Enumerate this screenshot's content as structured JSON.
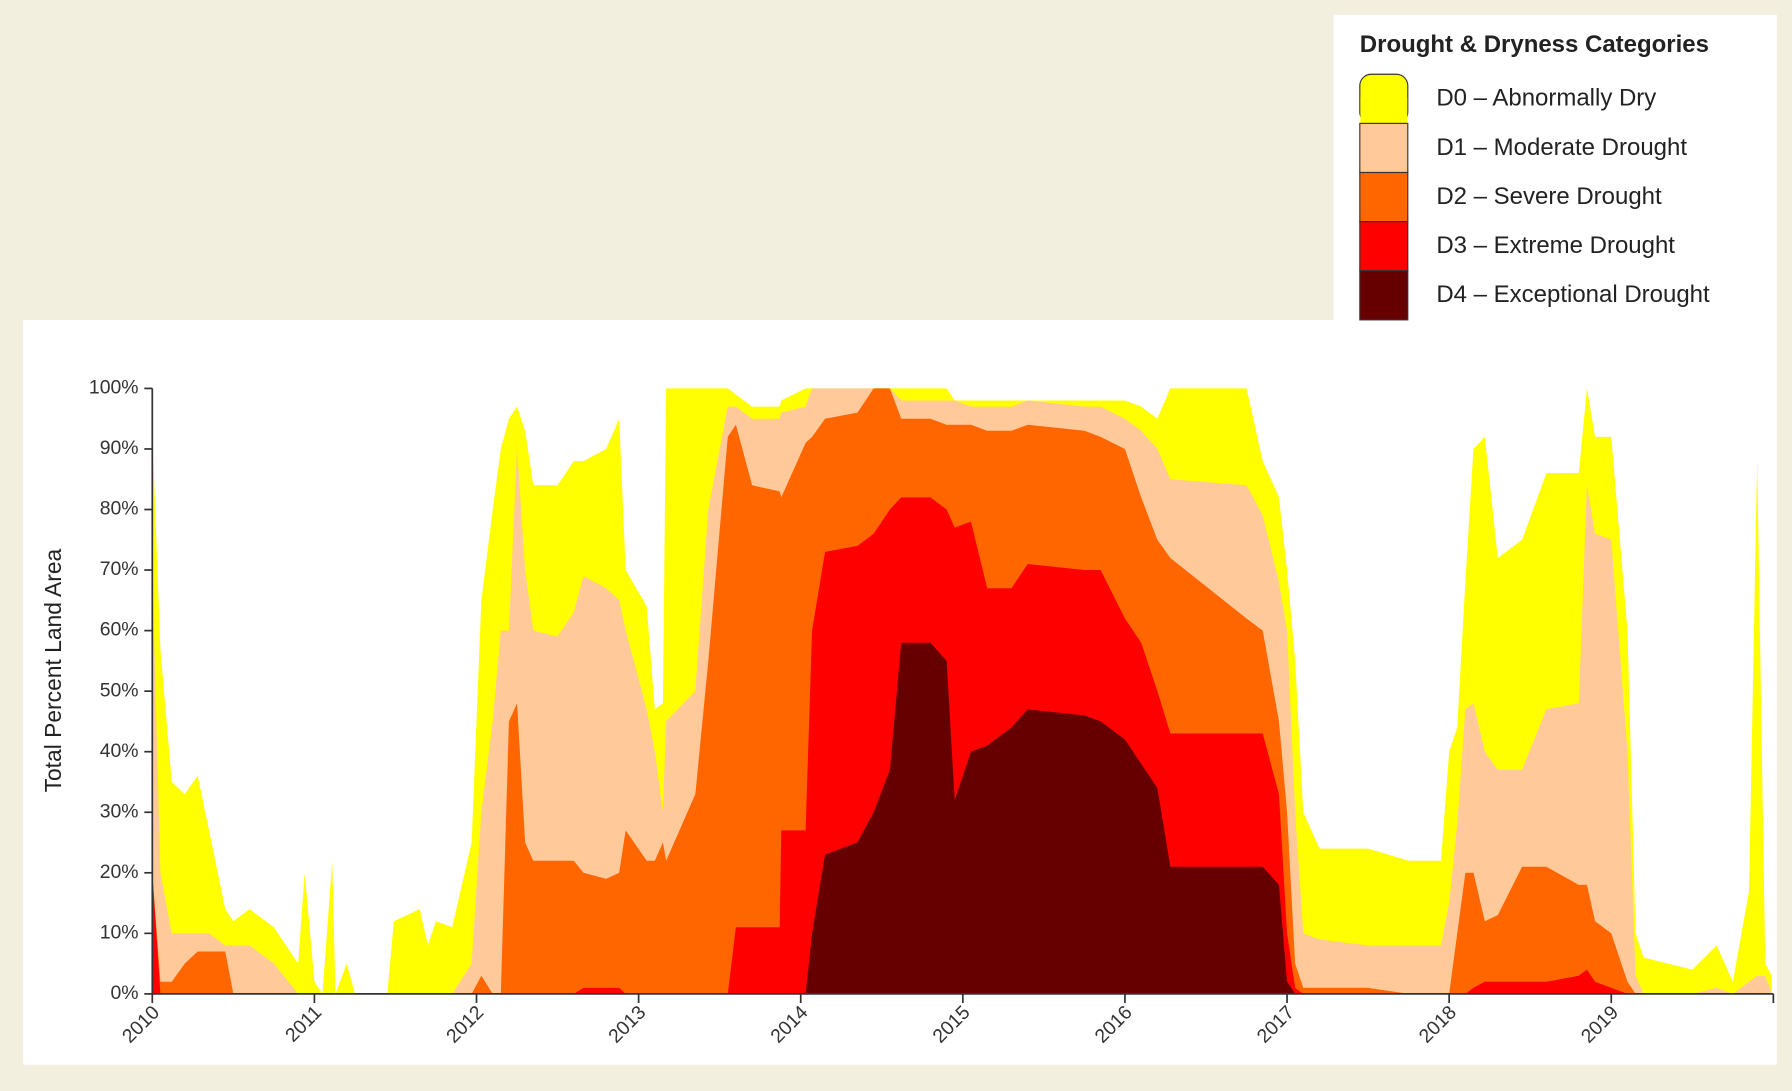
{
  "chart_data": {
    "type": "area",
    "legend_title": "Drought & Dryness Categories",
    "y_label": "Total Percent Land Area",
    "x": [
      2010.0,
      2010.05,
      2010.12,
      2010.2,
      2010.28,
      2010.35,
      2010.45,
      2010.5,
      2010.6,
      2010.75,
      2010.9,
      2010.94,
      2011.0,
      2011.05,
      2011.11,
      2011.13,
      2011.2,
      2011.25,
      2011.45,
      2011.49,
      2011.65,
      2011.7,
      2011.75,
      2011.85,
      2011.97,
      2012.03,
      2012.1,
      2012.15,
      2012.2,
      2012.25,
      2012.3,
      2012.35,
      2012.5,
      2012.6,
      2012.66,
      2012.8,
      2012.88,
      2012.92,
      2013.05,
      2013.1,
      2013.15,
      2013.17,
      2013.35,
      2013.43,
      2013.55,
      2013.6,
      2013.7,
      2013.87,
      2013.88,
      2014.03,
      2014.07,
      2014.15,
      2014.35,
      2014.45,
      2014.55,
      2014.62,
      2014.8,
      2014.9,
      2014.95,
      2015.05,
      2015.15,
      2015.3,
      2015.4,
      2015.75,
      2015.85,
      2016.0,
      2016.1,
      2016.2,
      2016.28,
      2016.75,
      2016.85,
      2016.95,
      2017.0,
      2017.05,
      2017.1,
      2017.2,
      2017.5,
      2017.75,
      2017.95,
      2018.0,
      2018.05,
      2018.1,
      2018.15,
      2018.22,
      2018.3,
      2018.45,
      2018.6,
      2018.8,
      2018.85,
      2018.9,
      2019.0,
      2019.1,
      2019.15,
      2019.2,
      2019.5,
      2019.65,
      2019.75,
      2019.85,
      2019.9,
      2019.95,
      2019.99
    ],
    "series": [
      {
        "name": "D0 – Abnormally Dry",
        "color": "#ffff00",
        "values": [
          93,
          57,
          35,
          33,
          36,
          27,
          14,
          12,
          14,
          11,
          5,
          20,
          2,
          0,
          22,
          0,
          5,
          0,
          0,
          12,
          14,
          8,
          12,
          11,
          25,
          65,
          80,
          90,
          95,
          97,
          93,
          84,
          84,
          88,
          88,
          90,
          95,
          70,
          64,
          47,
          48,
          100,
          100,
          100,
          100,
          99,
          97,
          97,
          98,
          100,
          100,
          100,
          100,
          100,
          100,
          100,
          100,
          100,
          98,
          98,
          98,
          98,
          98,
          98,
          98,
          98,
          97,
          95,
          100,
          100,
          88,
          82,
          70,
          55,
          30,
          24,
          24,
          22,
          22,
          40,
          44,
          68,
          90,
          92,
          72,
          75,
          86,
          86,
          100,
          92,
          92,
          60,
          10,
          6,
          4,
          8,
          2,
          17,
          88,
          5,
          3
        ]
      },
      {
        "name": "D1 – Moderate Drought",
        "color": "#ffc999",
        "values": [
          70,
          20,
          10,
          10,
          10,
          10,
          8,
          8,
          8,
          5,
          0,
          0,
          0,
          0,
          0,
          0,
          0,
          0,
          0,
          0,
          0,
          0,
          0,
          0,
          5,
          30,
          45,
          60,
          60,
          90,
          70,
          60,
          59,
          63,
          69,
          67,
          65,
          60,
          47,
          40,
          30,
          45,
          50,
          80,
          97,
          97,
          95,
          95,
          96,
          97,
          100,
          100,
          100,
          100,
          100,
          98,
          98,
          98,
          98,
          97,
          97,
          97,
          98,
          97,
          97,
          95,
          93,
          90,
          85,
          84,
          79,
          68,
          60,
          30,
          10,
          9,
          8,
          8,
          8,
          15,
          28,
          47,
          48,
          40,
          37,
          37,
          47,
          48,
          84,
          76,
          75,
          40,
          3,
          0,
          0,
          1,
          0,
          2,
          3,
          3,
          0
        ]
      },
      {
        "name": "D2 – Severe Drought",
        "color": "#ff6600",
        "values": [
          20,
          2,
          2,
          5,
          7,
          7,
          7,
          0,
          0,
          0,
          0,
          0,
          0,
          0,
          0,
          0,
          0,
          0,
          0,
          0,
          0,
          0,
          0,
          0,
          0,
          3,
          0,
          0,
          45,
          48,
          25,
          22,
          22,
          22,
          20,
          19,
          20,
          27,
          22,
          22,
          25,
          22,
          33,
          55,
          92,
          94,
          84,
          83,
          82,
          91,
          92,
          95,
          96,
          100,
          100,
          95,
          95,
          94,
          94,
          94,
          93,
          93,
          94,
          93,
          92,
          90,
          82,
          75,
          72,
          62,
          60,
          45,
          30,
          5,
          1,
          1,
          1,
          0,
          0,
          0,
          10,
          20,
          20,
          12,
          13,
          21,
          21,
          18,
          18,
          12,
          10,
          2,
          0,
          0,
          0,
          0,
          0,
          0,
          0,
          0,
          0
        ]
      },
      {
        "name": "D3 – Extreme Drought",
        "color": "#ff0000",
        "values": [
          20,
          0,
          0,
          0,
          0,
          0,
          0,
          0,
          0,
          0,
          0,
          0,
          0,
          0,
          0,
          0,
          0,
          0,
          0,
          0,
          0,
          0,
          0,
          0,
          0,
          0,
          0,
          0,
          0,
          0,
          0,
          0,
          0,
          0,
          1,
          1,
          1,
          0,
          0,
          0,
          0,
          0,
          0,
          0,
          0,
          11,
          11,
          11,
          27,
          27,
          60,
          73,
          74,
          76,
          80,
          82,
          82,
          80,
          77,
          78,
          67,
          67,
          71,
          70,
          70,
          62,
          58,
          50,
          43,
          43,
          43,
          33,
          10,
          1,
          0,
          0,
          0,
          0,
          0,
          0,
          0,
          0,
          1,
          2,
          2,
          2,
          2,
          3,
          4,
          2,
          1,
          0,
          0,
          0,
          0,
          0,
          0,
          0,
          0,
          0,
          0
        ]
      },
      {
        "name": "D4 – Exceptional Drought",
        "color": "#660000",
        "values": [
          0,
          0,
          0,
          0,
          0,
          0,
          0,
          0,
          0,
          0,
          0,
          0,
          0,
          0,
          0,
          0,
          0,
          0,
          0,
          0,
          0,
          0,
          0,
          0,
          0,
          0,
          0,
          0,
          0,
          0,
          0,
          0,
          0,
          0,
          0,
          0,
          0,
          0,
          0,
          0,
          0,
          0,
          0,
          0,
          0,
          0,
          0,
          0,
          0,
          0,
          10,
          23,
          25,
          30,
          37,
          58,
          58,
          55,
          32,
          40,
          41,
          44,
          47,
          46,
          45,
          42,
          38,
          34,
          21,
          21,
          21,
          18,
          2,
          0,
          0,
          0,
          0,
          0,
          0,
          0,
          0,
          0,
          0,
          0,
          0,
          0,
          0,
          0,
          0,
          0,
          0,
          0,
          0,
          0,
          0,
          0,
          0,
          0,
          0,
          0,
          0
        ]
      }
    ],
    "xlim": [
      2010,
      2020
    ],
    "xticks": [
      2010,
      2011,
      2012,
      2013,
      2014,
      2015,
      2016,
      2017,
      2018,
      2019
    ],
    "ylim": [
      0,
      100
    ],
    "yticks": [
      {
        "value": 0,
        "label": "0%"
      },
      {
        "value": 10,
        "label": "10%"
      },
      {
        "value": 20,
        "label": "20%"
      },
      {
        "value": 30,
        "label": "30%"
      },
      {
        "value": 40,
        "label": "40%"
      },
      {
        "value": 50,
        "label": "50%"
      },
      {
        "value": 60,
        "label": "60%"
      },
      {
        "value": 70,
        "label": "70%"
      },
      {
        "value": 80,
        "label": "80%"
      },
      {
        "value": 90,
        "label": "90%"
      },
      {
        "value": 100,
        "label": "100%"
      }
    ]
  }
}
